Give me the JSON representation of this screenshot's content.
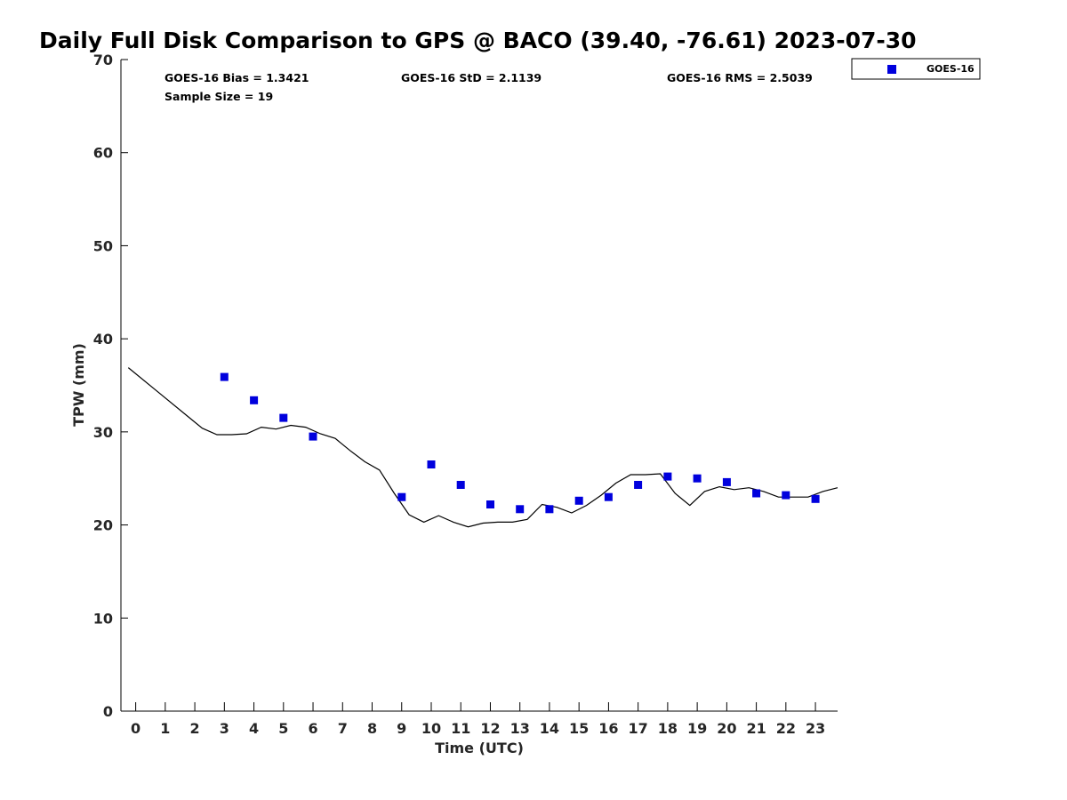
{
  "chart_data": {
    "type": "scatter",
    "title": "Daily Full Disk Comparison to GPS @ BACO (39.40, -76.61) 2023-07-30",
    "xlabel": "Time (UTC)",
    "ylabel": "TPW (mm)",
    "xlim": [
      -0.5,
      23.75
    ],
    "ylim": [
      0,
      70
    ],
    "x_ticks": [
      "0",
      "1",
      "2",
      "3",
      "4",
      "5",
      "6",
      "7",
      "8",
      "9",
      "10",
      "11",
      "12",
      "13",
      "14",
      "15",
      "16",
      "17",
      "18",
      "19",
      "20",
      "21",
      "22",
      "23"
    ],
    "y_ticks": [
      "0",
      "10",
      "20",
      "30",
      "40",
      "50",
      "60",
      "70"
    ],
    "grid": false,
    "legend_position": "top-right",
    "stats": {
      "bias": "GOES-16 Bias = 1.3421",
      "std": "GOES-16 StD = 2.1139",
      "rms": "GOES-16 RMS = 2.5039",
      "sample_size": "Sample Size = 19"
    },
    "series": [
      {
        "name": "GOES-16",
        "kind": "scatter",
        "marker": "square",
        "color": "#0000dd",
        "x": [
          3,
          4,
          5,
          6,
          9,
          10,
          11,
          12,
          13,
          14,
          15,
          16,
          17,
          18,
          19,
          20,
          21,
          22,
          23
        ],
        "y": [
          35.9,
          33.4,
          31.5,
          29.5,
          23.0,
          26.5,
          24.3,
          22.2,
          21.7,
          21.7,
          22.6,
          23.0,
          24.3,
          25.2,
          25.0,
          24.6,
          23.4,
          23.2,
          22.8
        ]
      },
      {
        "kind": "line",
        "color": "#000000",
        "x": [
          -0.25,
          0.75,
          1.75,
          2.25,
          2.75,
          3.25,
          3.75,
          4.25,
          4.75,
          5.25,
          5.75,
          6.25,
          6.75,
          7.25,
          7.75,
          8.25,
          8.75,
          9.25,
          9.75,
          10.25,
          10.75,
          11.25,
          11.75,
          12.25,
          12.75,
          13.25,
          13.75,
          14.25,
          14.75,
          15.25,
          15.75,
          16.25,
          16.75,
          17.25,
          17.75,
          18.25,
          18.75,
          19.25,
          19.75,
          20.25,
          20.75,
          21.25,
          21.75,
          22.25,
          22.75,
          23.25,
          23.75
        ],
        "y": [
          36.9,
          34.3,
          31.7,
          30.4,
          29.7,
          29.7,
          29.8,
          30.5,
          30.3,
          30.7,
          30.5,
          29.8,
          29.3,
          28.0,
          26.8,
          25.9,
          23.4,
          21.1,
          20.3,
          21.0,
          20.3,
          19.8,
          20.2,
          20.3,
          20.3,
          20.6,
          22.2,
          21.9,
          21.3,
          22.1,
          23.2,
          24.5,
          25.4,
          25.4,
          25.5,
          23.4,
          22.1,
          23.6,
          24.1,
          23.8,
          24.0,
          23.6,
          23.0,
          23.0,
          23.0,
          23.6,
          24.0
        ]
      }
    ]
  }
}
